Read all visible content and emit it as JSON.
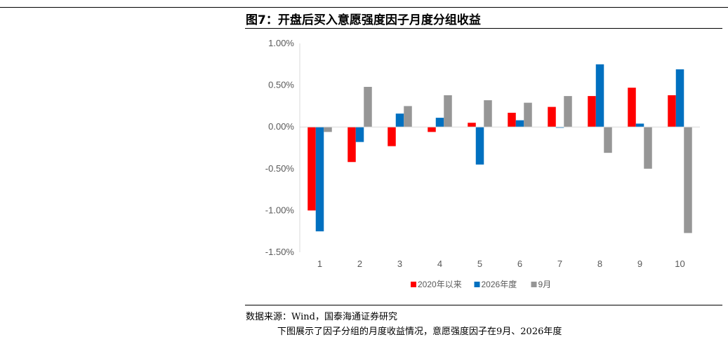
{
  "figure": {
    "title": "图7：开盘后买入意愿强度因子月度分组收益",
    "source": "数据来源：Wind，国泰海通证券研究",
    "trailing_text": "下图展示了因子分组的月度收益情况，意愿强度因子在9月、2026年度"
  },
  "chart_data": {
    "type": "bar",
    "title": "",
    "xlabel": "",
    "ylabel": "",
    "categories": [
      "1",
      "2",
      "3",
      "4",
      "5",
      "6",
      "7",
      "8",
      "9",
      "10"
    ],
    "ylim": [
      -0.015,
      0.01
    ],
    "yticks": [
      0.01,
      0.005,
      0.0,
      -0.005,
      -0.01,
      -0.015
    ],
    "ytick_labels": [
      "1.00%",
      "0.50%",
      "0.00%",
      "-0.50%",
      "-1.00%",
      "-1.50%"
    ],
    "grid": false,
    "legend_position": "bottom",
    "series": [
      {
        "name": "2020年以来",
        "color": "#ff0000",
        "values": [
          -0.01,
          -0.0042,
          -0.0023,
          -0.0006,
          0.0005,
          0.0017,
          0.0024,
          0.0037,
          0.0047,
          0.0038
        ]
      },
      {
        "name": "2026年度",
        "color": "#0070c0",
        "values": [
          -0.0125,
          -0.0018,
          0.0016,
          0.0011,
          -0.0045,
          0.0008,
          -0.0001,
          0.0075,
          0.0004,
          0.0069
        ]
      },
      {
        "name": "9月",
        "color": "#969696",
        "values": [
          -0.0006,
          0.0048,
          0.0025,
          0.0038,
          0.0032,
          0.0029,
          0.0037,
          -0.0031,
          -0.005,
          -0.0127
        ]
      }
    ]
  }
}
